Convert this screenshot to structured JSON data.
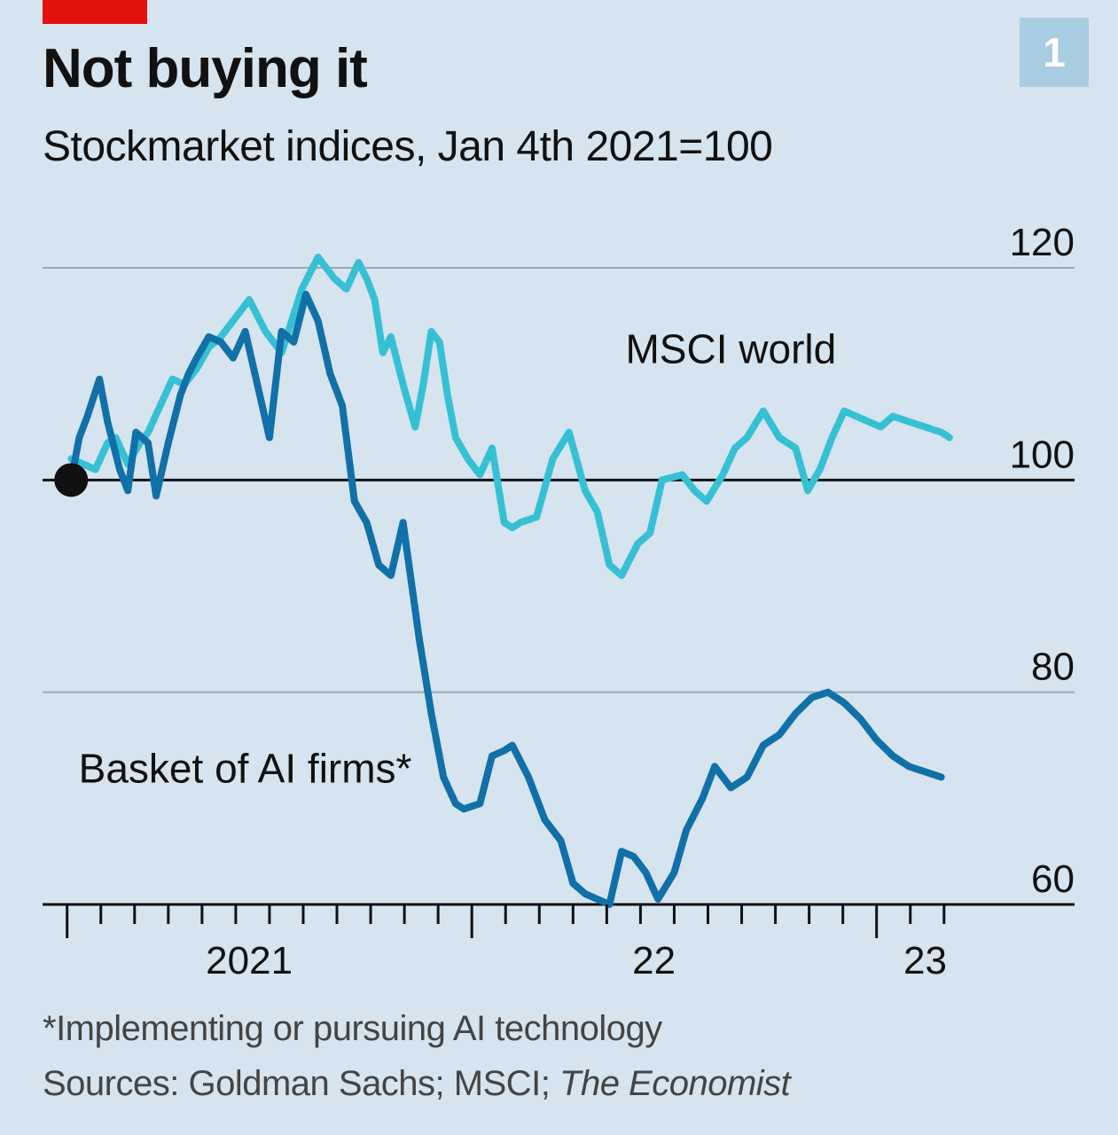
{
  "header": {
    "title": "Not buying it",
    "subtitle": "Stockmarket indices, Jan 4th 2021=100",
    "chart_number": "1"
  },
  "footer": {
    "footnote": "*Implementing or pursuing AI technology",
    "sources_prefix": "Sources: Goldman Sachs; MSCI; ",
    "sources_italic": "The Economist"
  },
  "colors": {
    "background": "#d6e4ef",
    "accent_red": "#e3120b",
    "msci": "#36c0d4",
    "ai_basket": "#1170a8",
    "badge": "#a9cde1"
  },
  "chart_data": {
    "type": "line",
    "ylim": [
      60,
      120
    ],
    "yticks": [
      60,
      80,
      100,
      120
    ],
    "grid": true,
    "x_tick_labels": [
      {
        "label": "2021",
        "t": 2021.45
      },
      {
        "label": "22",
        "t": 2022.45
      },
      {
        "label": "23",
        "t": 2023.12
      }
    ],
    "series": [
      {
        "name": "MSCI world",
        "color": "#36c0d4",
        "x": [
          2021.01,
          2021.04,
          2021.07,
          2021.1,
          2021.12,
          2021.15,
          2021.18,
          2021.2,
          2021.23,
          2021.26,
          2021.29,
          2021.32,
          2021.35,
          2021.38,
          2021.41,
          2021.45,
          2021.49,
          2021.53,
          2021.58,
          2021.62,
          2021.66,
          2021.69,
          2021.72,
          2021.74,
          2021.76,
          2021.78,
          2021.8,
          2021.83,
          2021.86,
          2021.88,
          2021.9,
          2021.92,
          2021.94,
          2021.96,
          2021.99,
          2022.02,
          2022.05,
          2022.08,
          2022.1,
          2022.12,
          2022.16,
          2022.2,
          2022.24,
          2022.28,
          2022.31,
          2022.34,
          2022.37,
          2022.41,
          2022.44,
          2022.47,
          2022.52,
          2022.55,
          2022.58,
          2022.62,
          2022.65,
          2022.68,
          2022.72,
          2022.76,
          2022.8,
          2022.83,
          2022.86,
          2022.89,
          2022.92,
          2022.95,
          2022.98,
          2023.01,
          2023.04,
          2023.08,
          2023.12,
          2023.16,
          2023.18
        ],
        "values": [
          102,
          101.5,
          101,
          103.5,
          104,
          101.5,
          103.5,
          104.5,
          107,
          109.5,
          109,
          110.5,
          112.5,
          113.5,
          115,
          117,
          114,
          112,
          118,
          121,
          119,
          118,
          120.5,
          119,
          117,
          112,
          113.5,
          109,
          105,
          109,
          114,
          113,
          108,
          104,
          102,
          100.5,
          103,
          96,
          95.5,
          96,
          96.5,
          102,
          104.5,
          99,
          97,
          92,
          91,
          94,
          95,
          100,
          100.5,
          99,
          98,
          100.5,
          103,
          104,
          106.5,
          104,
          103,
          99,
          101,
          104,
          106.5,
          106,
          105.5,
          105,
          106,
          105.5,
          105,
          104.5,
          104
        ]
      },
      {
        "name": "Basket of AI firms*",
        "color": "#1170a8",
        "x": [
          2021.01,
          2021.03,
          2021.05,
          2021.08,
          2021.1,
          2021.13,
          2021.15,
          2021.17,
          2021.2,
          2021.22,
          2021.25,
          2021.28,
          2021.3,
          2021.32,
          2021.35,
          2021.38,
          2021.41,
          2021.44,
          2021.47,
          2021.5,
          2021.53,
          2021.56,
          2021.59,
          2021.62,
          2021.65,
          2021.68,
          2021.71,
          2021.74,
          2021.77,
          2021.8,
          2021.83,
          2021.87,
          2021.9,
          2021.93,
          2021.96,
          2021.98,
          2022.02,
          2022.05,
          2022.08,
          2022.1,
          2022.14,
          2022.18,
          2022.22,
          2022.25,
          2022.28,
          2022.31,
          2022.34,
          2022.37,
          2022.4,
          2022.43,
          2022.46,
          2022.5,
          2022.53,
          2022.57,
          2022.6,
          2022.64,
          2022.68,
          2022.72,
          2022.76,
          2022.8,
          2022.84,
          2022.88,
          2022.92,
          2022.96,
          2023.0,
          2023.04,
          2023.08,
          2023.12,
          2023.16
        ],
        "values": [
          100,
          104,
          106,
          109.5,
          105.5,
          101,
          99,
          104.5,
          103.5,
          98.5,
          103.5,
          108,
          110,
          111.5,
          113.5,
          113,
          111.5,
          114,
          109,
          104,
          114,
          113,
          117.5,
          115,
          110,
          107,
          98,
          96,
          92,
          91,
          96,
          85,
          78,
          72,
          69.5,
          69,
          69.5,
          74,
          74.5,
          75,
          72,
          68,
          66,
          62,
          61,
          60.5,
          60,
          65,
          64.5,
          63,
          60.5,
          63,
          67,
          70,
          73,
          71,
          72,
          75,
          76,
          78,
          79.5,
          80,
          79,
          77.5,
          75.5,
          74,
          73,
          72.5,
          72
        ]
      }
    ],
    "annotations": [
      {
        "text": "MSCI world",
        "x": 2022.64,
        "y": 111
      },
      {
        "text": "Basket of AI firms*",
        "x": 2021.44,
        "y": 71.5
      }
    ],
    "start_marker": {
      "x": 2021.01,
      "y": 100
    }
  }
}
